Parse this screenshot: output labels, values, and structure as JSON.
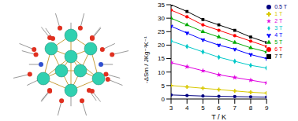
{
  "chart_data": {
    "type": "line",
    "x_label": "T / K",
    "y_label": "-ΔSm / JKg⁻¹K⁻¹",
    "x": [
      3,
      4,
      5,
      6,
      7,
      8,
      9
    ],
    "xlim": [
      3,
      9
    ],
    "xticks": [
      3,
      4,
      5,
      6,
      7,
      8,
      9
    ],
    "ylim": [
      0,
      35
    ],
    "yticks": [
      0,
      5,
      10,
      15,
      20,
      25,
      30,
      35
    ],
    "grid": false,
    "legend": "right",
    "series": [
      {
        "name": "7 T",
        "color": "#000000",
        "marker": "square",
        "values": [
          35,
          32.5,
          29.5,
          27.5,
          25.5,
          23,
          21
        ]
      },
      {
        "name": "6 T",
        "color": "#ff0000",
        "marker": "circle",
        "values": [
          33,
          30.5,
          27.5,
          25.5,
          23.5,
          21.5,
          19.5
        ]
      },
      {
        "name": "5 T",
        "color": "#00aa00",
        "marker": "triangle",
        "values": [
          30,
          27.5,
          25,
          23,
          21,
          19,
          17.5
        ]
      },
      {
        "name": "4 T",
        "color": "#0000ff",
        "marker": "wye",
        "values": [
          27,
          24.5,
          22,
          20,
          18.5,
          16.5,
          15
        ]
      },
      {
        "name": "3 T",
        "color": "#00c8c8",
        "marker": "diamond",
        "values": [
          21.5,
          19.5,
          17.5,
          15.5,
          14,
          12.5,
          11.5
        ]
      },
      {
        "name": "2 T",
        "color": "#e000e0",
        "marker": "star",
        "values": [
          13.5,
          12,
          10.5,
          9,
          8,
          7,
          6
        ]
      },
      {
        "name": "1 T",
        "color": "#d8c800",
        "marker": "cross",
        "values": [
          5,
          4.5,
          4,
          3.5,
          3,
          2.5,
          2.2
        ]
      },
      {
        "name": "0.5 T",
        "color": "#000080",
        "marker": "circle",
        "values": [
          1.5,
          1.3,
          1.1,
          1,
          0.9,
          0.8,
          0.7
        ]
      }
    ]
  }
}
